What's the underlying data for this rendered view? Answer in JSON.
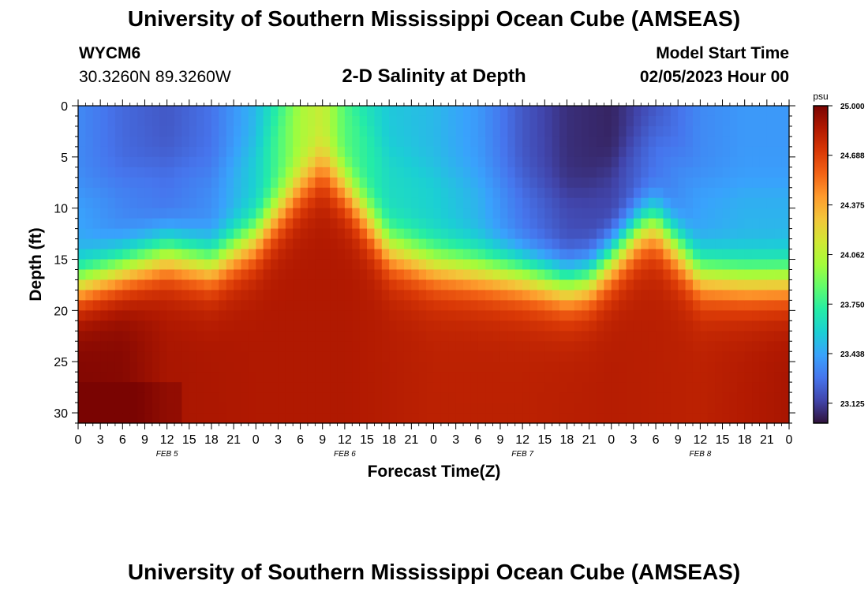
{
  "page_title": "University of Southern Mississippi Ocean Cube (AMSEAS)",
  "station": {
    "id": "WYCM6",
    "coordinates": "30.3260N  89.3260W"
  },
  "model_start": {
    "label": "Model Start Time",
    "value": "02/05/2023 Hour 00"
  },
  "footer_title": "University of Southern Mississippi Ocean Cube (AMSEAS)",
  "chart_data": {
    "type": "heatmap",
    "title": "2-D Salinity at Depth",
    "xlabel": "Forecast Time(Z)",
    "ylabel": "Depth (ft)",
    "ylim": [
      0,
      31
    ],
    "yticks": [
      "0",
      "5",
      "10",
      "15",
      "20",
      "25",
      "30"
    ],
    "xticks": [
      "0",
      "3",
      "6",
      "9",
      "12",
      "15",
      "18",
      "21",
      "0",
      "3",
      "6",
      "9",
      "12",
      "15",
      "18",
      "21",
      "0",
      "3",
      "6",
      "9",
      "12",
      "15",
      "18",
      "21",
      "0",
      "3",
      "6",
      "9",
      "12",
      "15",
      "18",
      "21",
      "0"
    ],
    "xlim_hours": [
      0,
      96
    ],
    "date_labels": [
      {
        "label": "FEB 5",
        "hour": 12
      },
      {
        "label": "FEB 6",
        "hour": 36
      },
      {
        "label": "FEB 7",
        "hour": 60
      },
      {
        "label": "FEB 8",
        "hour": 84
      }
    ],
    "colorbar": {
      "unit": "psu",
      "min": 23.0,
      "max": 25.0,
      "tick_labels": [
        "25.000",
        "24.688",
        "24.375",
        "24.062",
        "23.750",
        "23.438",
        "23.125"
      ],
      "tick_values": [
        25.0,
        24.688,
        24.375,
        24.062,
        23.75,
        23.438,
        23.125
      ],
      "stops": [
        "#30123b",
        "#4145ab",
        "#4675ed",
        "#39a2fc",
        "#1bcfd4",
        "#24eca6",
        "#61fc6c",
        "#a4fc3b",
        "#d1e834",
        "#f3c63a",
        "#fe9b2d",
        "#f36315",
        "#d93806",
        "#b11901",
        "#7a0402"
      ]
    },
    "halocline_depth_ft_by_hour": [
      [
        0,
        17.5
      ],
      [
        6,
        16
      ],
      [
        12,
        14.5
      ],
      [
        18,
        15.5
      ],
      [
        24,
        13
      ],
      [
        30,
        8
      ],
      [
        33,
        6
      ],
      [
        36,
        8
      ],
      [
        42,
        14
      ],
      [
        48,
        15.5
      ],
      [
        54,
        16
      ],
      [
        60,
        16.5
      ],
      [
        66,
        17.5
      ],
      [
        69,
        17
      ],
      [
        72,
        15
      ],
      [
        76,
        12
      ],
      [
        78,
        11.5
      ],
      [
        81,
        14
      ],
      [
        84,
        16.5
      ],
      [
        90,
        17
      ],
      [
        96,
        17
      ]
    ],
    "surface_salinity_psu_by_hour": [
      [
        0,
        23.35
      ],
      [
        6,
        23.25
      ],
      [
        12,
        23.2
      ],
      [
        18,
        23.28
      ],
      [
        24,
        23.5
      ],
      [
        30,
        23.95
      ],
      [
        33,
        24.05
      ],
      [
        36,
        23.75
      ],
      [
        42,
        23.55
      ],
      [
        48,
        23.5
      ],
      [
        54,
        23.4
      ],
      [
        60,
        23.2
      ],
      [
        66,
        23.08
      ],
      [
        72,
        23.05
      ],
      [
        78,
        23.2
      ],
      [
        84,
        23.35
      ],
      [
        90,
        23.4
      ],
      [
        96,
        23.4
      ]
    ],
    "deep_salinity_psu_by_hour": [
      [
        0,
        24.98
      ],
      [
        6,
        24.97
      ],
      [
        12,
        24.88
      ],
      [
        24,
        24.86
      ],
      [
        36,
        24.86
      ],
      [
        48,
        24.82
      ],
      [
        60,
        24.82
      ],
      [
        72,
        24.84
      ],
      [
        84,
        24.82
      ],
      [
        96,
        24.88
      ]
    ]
  }
}
